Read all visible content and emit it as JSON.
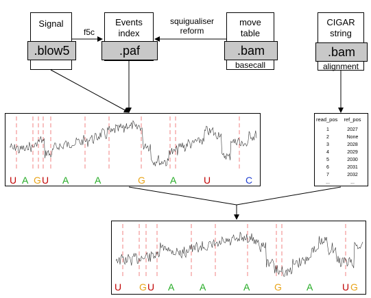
{
  "boxes": {
    "signal": {
      "title": "Signal",
      "format": ".blow5"
    },
    "events": {
      "title_line1": "Events",
      "title_line2": "index",
      "format": ".paf"
    },
    "move": {
      "title_line1": "move",
      "title_line2": "table",
      "format": ".bam",
      "sub": "basecall"
    },
    "cigar": {
      "title_line1": "CIGAR",
      "title_line2": "string",
      "format": ".bam",
      "sub": "alignment"
    }
  },
  "arrows": {
    "f5c": "f5c",
    "squig_line1": "squigualiser",
    "squig_line2": "reform"
  },
  "table": {
    "headers": [
      "read_pos",
      "ref_pos"
    ],
    "rows": [
      [
        "1",
        "2027"
      ],
      [
        "2",
        "None"
      ],
      [
        "3",
        "2028"
      ],
      [
        "4",
        "2029"
      ],
      [
        "5",
        "2030"
      ],
      [
        "6",
        "2031"
      ],
      [
        "7",
        "2032"
      ],
      [
        "...",
        "..."
      ]
    ]
  },
  "panel_top": {
    "bases": [
      {
        "b": "U",
        "color": "#c00000"
      },
      {
        "b": "A",
        "color": "#22aa22"
      },
      {
        "b": "G",
        "color": "#e8a317"
      },
      {
        "b": "U",
        "color": "#c00000"
      },
      {
        "b": "A",
        "color": "#22aa22"
      },
      {
        "b": "A",
        "color": "#22aa22"
      },
      {
        "b": "G",
        "color": "#e8a317"
      },
      {
        "b": "A",
        "color": "#22aa22"
      },
      {
        "b": "U",
        "color": "#c00000"
      },
      {
        "b": "C",
        "color": "#1f3fd0"
      }
    ]
  },
  "panel_bottom": {
    "bases": [
      {
        "b": "U",
        "color": "#c00000"
      },
      {
        "b": "G",
        "color": "#e8a317"
      },
      {
        "b": "U",
        "color": "#c00000"
      },
      {
        "b": "A",
        "color": "#22aa22"
      },
      {
        "b": "A",
        "color": "#22aa22"
      },
      {
        "b": "A",
        "color": "#22aa22"
      },
      {
        "b": "G",
        "color": "#e8a317"
      },
      {
        "b": "A",
        "color": "#22aa22"
      },
      {
        "b": "U",
        "color": "#c00000"
      },
      {
        "b": "G",
        "color": "#e8a317"
      }
    ]
  }
}
